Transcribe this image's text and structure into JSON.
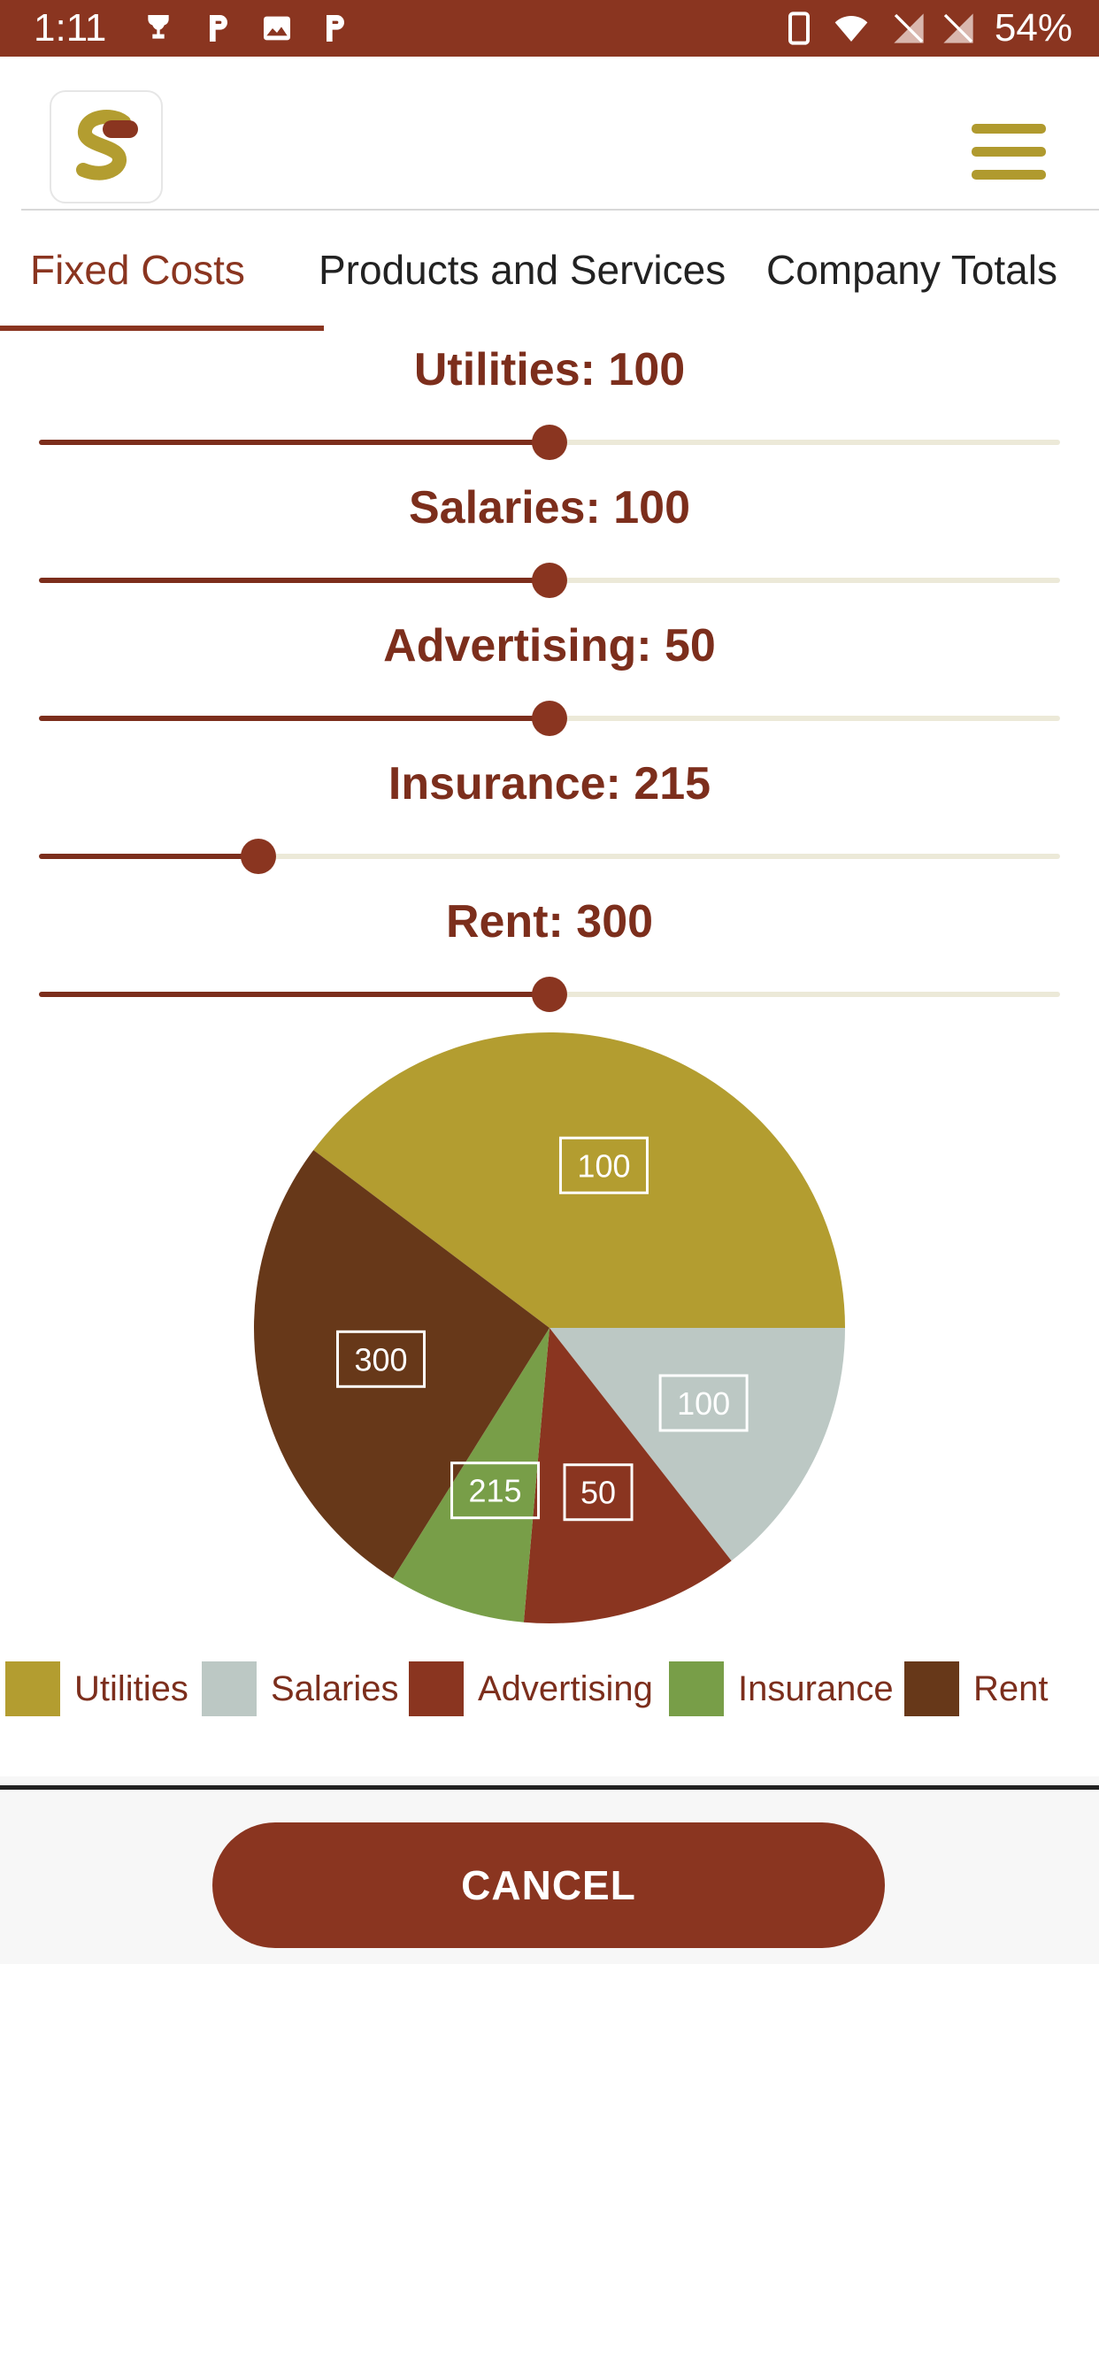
{
  "status_bar": {
    "time": "1:11",
    "battery": "54%",
    "icons": [
      "trophy-icon",
      "p-icon",
      "image-icon",
      "p-icon",
      "phone-icon",
      "wifi-icon",
      "no-signal-icon",
      "no-signal-icon"
    ]
  },
  "header": {
    "logo_letter": "S",
    "menu_icon": "hamburger-menu-icon"
  },
  "tabs": [
    {
      "label": "Fixed Costs",
      "active": true
    },
    {
      "label": "Products and Services",
      "active": false
    },
    {
      "label": "Company Totals",
      "active": false
    }
  ],
  "sliders": [
    {
      "title": "Utilities: 100",
      "fill_fraction": 0.5
    },
    {
      "title": "Salaries: 100",
      "fill_fraction": 0.5
    },
    {
      "title": "Advertising: 50",
      "fill_fraction": 0.5
    },
    {
      "title": "Insurance: 215",
      "fill_fraction": 0.215
    },
    {
      "title": "Rent: 300",
      "fill_fraction": 0.5
    }
  ],
  "chart_data": {
    "type": "pie",
    "slices": [
      {
        "label": "Utilities",
        "value": 100,
        "display": "100",
        "color": "#b39d30",
        "start_deg": 0,
        "end_deg": 143
      },
      {
        "label": "Salaries",
        "value": 100,
        "display": "100",
        "color": "#bcc8c4",
        "start_deg": 0,
        "end_deg": -52
      },
      {
        "label": "Advertising",
        "value": 50,
        "display": "50",
        "color": "#8a3520",
        "start_deg": -52,
        "end_deg": -95
      },
      {
        "label": "Insurance",
        "value": 215,
        "display": "215",
        "color": "#789e48",
        "start_deg": -95,
        "end_deg": -122
      },
      {
        "label": "Rent",
        "value": 300,
        "display": "300",
        "color": "#673819",
        "start_deg": -122,
        "end_deg": -217
      }
    ],
    "legend": [
      "Utilities",
      "Salaries",
      "Advertising",
      "Insurance",
      "Rent"
    ],
    "legend_position": "bottom"
  },
  "footer": {
    "cancel_label": "CANCEL"
  }
}
